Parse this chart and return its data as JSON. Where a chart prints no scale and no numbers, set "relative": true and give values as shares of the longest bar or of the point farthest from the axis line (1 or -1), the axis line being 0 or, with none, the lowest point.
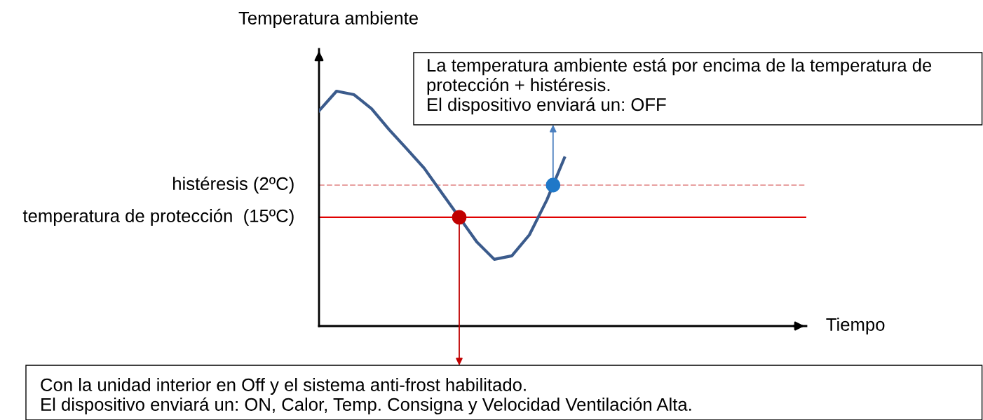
{
  "chart_data": {
    "type": "line",
    "relative": true,
    "ylabel": "Temperatura ambiente",
    "categories": [
      null,
      null,
      null,
      null,
      null,
      null,
      null,
      null,
      null,
      null,
      null,
      null,
      null,
      null,
      null
    ],
    "series": [
      {
        "color": "#3b5b8c",
        "values": [
          0.916,
          1.0,
          0.985,
          0.925,
          0.836,
          0.755,
          0.672,
          0.567,
          0.463,
          0.358,
          0.284,
          0.299,
          0.388,
          0.537,
          0.716
        ]
      }
    ],
    "ref_lines": [
      {
        "axis": "y",
        "value": 0.463,
        "label": "temperatura de protección  (15ºC)",
        "color": "#e00000",
        "line_style": "solid"
      },
      {
        "axis": "y",
        "value": 0.6,
        "label": "histéresis (2ºC)",
        "color": "#e8a0a0",
        "line_style": "dashed"
      }
    ],
    "annotations": [
      "Con la unidad interior en Off y el sistema anti-frost habilitado.\nEl dispositivo enviará un: ON, Calor, Temp. Consigna y Velocidad Ventilación Alta.",
      "La temperatura ambiente está por encima de la temperatura de\nprotección + histéresis.\nEl dispositivo enviará un: OFF",
      "Tiempo"
    ],
    "marker": "none",
    "line_style": "solid"
  }
}
